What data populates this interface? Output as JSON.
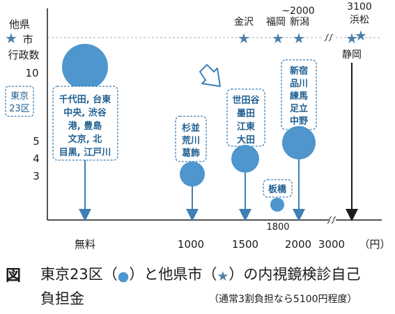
{
  "colors": {
    "circle": "#4e96cd",
    "star": "#4e7fa8",
    "text_blue": "#1f5f91",
    "axis": "#1a1a1a"
  },
  "labels": {
    "ylabel_other": [
      "他県",
      "市",
      "行政数"
    ],
    "ylabel_tokyo": [
      "東京",
      "23区"
    ],
    "tilde_2000": "~2000",
    "val_3100": "3100",
    "val_1800": "1800",
    "x_unit": "（円）"
  },
  "chart_data": {
    "type": "scatter",
    "xlabel": "",
    "ylabel": "",
    "x_tick_labels": [
      "無料",
      "1000",
      "1500",
      "2000",
      "3000",
      "（円）"
    ],
    "y_tick_labels": [
      "3",
      "4",
      "5",
      "10"
    ],
    "y_scale": "categorical",
    "grid": false,
    "tokyo_23_wards": [
      {
        "cost": "無料",
        "count": 10,
        "wards": [
          "千代田",
          "台東",
          "中央",
          "渋谷",
          "港",
          "豊島",
          "文京",
          "北",
          "目黒",
          "江戸川"
        ],
        "label_lines": [
          "千代田, 台東",
          "中央, 渋谷",
          "港, 豊島",
          "文京, 北",
          "目黒, 江戸川"
        ]
      },
      {
        "cost": 1000,
        "count": 3,
        "wards": [
          "杉並",
          "荒川",
          "葛飾"
        ],
        "label_lines": [
          "杉並",
          "荒川",
          "葛飾"
        ]
      },
      {
        "cost": 1500,
        "count": 4,
        "wards": [
          "世田谷",
          "墨田",
          "江東",
          "大田"
        ],
        "label_lines": [
          "世田谷",
          "墨田",
          "江東",
          "大田"
        ]
      },
      {
        "cost": 1800,
        "count": 1,
        "wards": [
          "板橋"
        ],
        "label_lines": [
          "板橋"
        ]
      },
      {
        "cost": 2000,
        "count": 5,
        "wards": [
          "新宿",
          "品川",
          "練馬",
          "足立",
          "中野"
        ],
        "label_lines": [
          "新宿",
          "品川",
          "練馬",
          "足立",
          "中野"
        ]
      }
    ],
    "other_cities": [
      {
        "cost": 1500,
        "cities": [
          "金沢"
        ]
      },
      {
        "cost": 1800,
        "cities": [
          "福岡"
        ]
      },
      {
        "cost": "~2000",
        "cities": [
          "新潟"
        ]
      },
      {
        "cost": 3100,
        "cities": [
          "浜松",
          "静岡"
        ]
      }
    ]
  },
  "caption": {
    "fig": "図",
    "line1_a": "東京23区（",
    "line1_b": "）と他県市（",
    "line1_c": "）の内視鏡検診自己",
    "line2": "負担金",
    "note": "（通常3割負担なら5100円程度）",
    "circle_glyph": "●",
    "star_glyph": "★"
  }
}
